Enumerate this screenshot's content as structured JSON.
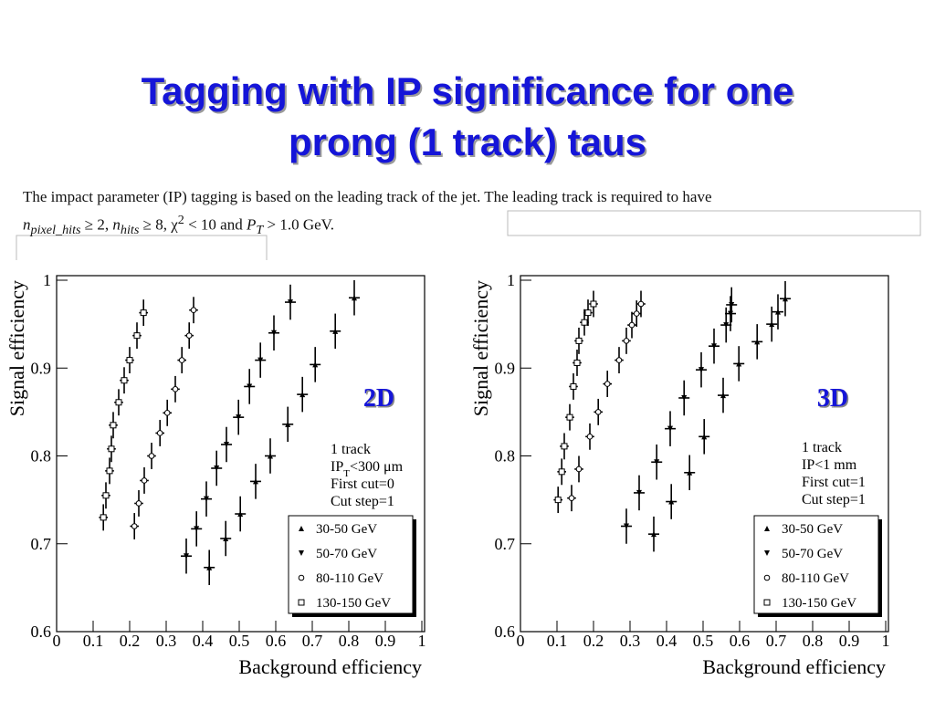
{
  "title": [
    "Tagging with IP significance for one",
    "prong (1 track) taus"
  ],
  "paragraph": {
    "line1": "The impact parameter (IP) tagging is based on the leading track of the jet.  The leading track is required to have",
    "line2": [
      "n",
      "pixel_hits",
      " ≥ 2, ",
      "n",
      "hits",
      " ≥ 8, χ",
      "2",
      " < 10 and ",
      "P",
      "T",
      " > 1.0 GeV."
    ]
  },
  "chart_data": [
    {
      "type": "scatter",
      "label": "2D",
      "x_label": "Background efficiency",
      "y_label": "Signal efficiency",
      "xlim": [
        0,
        1
      ],
      "ylim": [
        0.6,
        1
      ],
      "xticks": [
        0,
        0.1,
        0.2,
        0.3,
        0.4,
        0.5,
        0.6,
        0.7,
        0.8,
        0.9,
        1
      ],
      "yticks": [
        0.6,
        0.7,
        0.8,
        0.9,
        1
      ],
      "notes": [
        [
          "1 track"
        ],
        [
          "IP",
          "T",
          "<300 μm"
        ],
        [
          "First cut=0"
        ],
        [
          "Cut step=1"
        ]
      ],
      "series": [
        {
          "name": "30-50 GeV",
          "marker": "triangle-up",
          "color": "#000000",
          "xerr": 0.015,
          "yerr": 0.02,
          "x": [
            0.418,
            0.463,
            0.503,
            0.545,
            0.585,
            0.633,
            0.673,
            0.708,
            0.763,
            0.815
          ],
          "values": [
            0.673,
            0.706,
            0.734,
            0.771,
            0.8,
            0.836,
            0.87,
            0.904,
            0.942,
            0.98
          ]
        },
        {
          "name": "50-70 GeV",
          "marker": "triangle-down",
          "color": "#000000",
          "xerr": 0.015,
          "yerr": 0.02,
          "x": [
            0.355,
            0.383,
            0.41,
            0.438,
            0.465,
            0.498,
            0.528,
            0.558,
            0.595,
            0.64
          ],
          "values": [
            0.686,
            0.717,
            0.751,
            0.786,
            0.813,
            0.844,
            0.879,
            0.909,
            0.94,
            0.975
          ]
        },
        {
          "name": "80-110 GeV",
          "marker": "circle",
          "color": "#000000",
          "xerr": 0.012,
          "yerr": 0.015,
          "x": [
            0.213,
            0.225,
            0.24,
            0.26,
            0.283,
            0.303,
            0.325,
            0.343,
            0.363,
            0.375
          ],
          "values": [
            0.72,
            0.746,
            0.772,
            0.8,
            0.826,
            0.849,
            0.876,
            0.909,
            0.937,
            0.966
          ]
        },
        {
          "name": "130-150 GeV",
          "marker": "square",
          "color": "#000000",
          "xerr": 0.012,
          "yerr": 0.015,
          "x": [
            0.128,
            0.135,
            0.145,
            0.15,
            0.155,
            0.17,
            0.185,
            0.2,
            0.22,
            0.238
          ],
          "values": [
            0.73,
            0.755,
            0.783,
            0.808,
            0.835,
            0.861,
            0.886,
            0.909,
            0.937,
            0.963
          ]
        }
      ]
    },
    {
      "type": "scatter",
      "label": "3D",
      "x_label": "Background efficiency",
      "y_label": "Signal efficiency",
      "xlim": [
        0,
        1
      ],
      "ylim": [
        0.6,
        1
      ],
      "xticks": [
        0,
        0.1,
        0.2,
        0.3,
        0.4,
        0.5,
        0.6,
        0.7,
        0.8,
        0.9,
        1
      ],
      "yticks": [
        0.6,
        0.7,
        0.8,
        0.9,
        1
      ],
      "notes": [
        [
          "1 track"
        ],
        [
          "IP<1 mm"
        ],
        [
          "First cut=1"
        ],
        [
          "Cut step=1"
        ]
      ],
      "series": [
        {
          "name": "30-50 GeV",
          "marker": "triangle-up",
          "color": "#000000",
          "xerr": 0.015,
          "yerr": 0.02,
          "x": [
            0.365,
            0.413,
            0.463,
            0.503,
            0.555,
            0.598,
            0.648,
            0.688,
            0.705,
            0.725
          ],
          "values": [
            0.711,
            0.748,
            0.781,
            0.822,
            0.869,
            0.905,
            0.93,
            0.95,
            0.964,
            0.979
          ]
        },
        {
          "name": "50-70 GeV",
          "marker": "triangle-down",
          "color": "#000000",
          "xerr": 0.015,
          "yerr": 0.02,
          "x": [
            0.29,
            0.325,
            0.373,
            0.41,
            0.448,
            0.495,
            0.53,
            0.563,
            0.575,
            0.578
          ],
          "values": [
            0.72,
            0.758,
            0.793,
            0.831,
            0.866,
            0.898,
            0.925,
            0.949,
            0.962,
            0.972
          ]
        },
        {
          "name": "80-110 GeV",
          "marker": "circle",
          "color": "#000000",
          "xerr": 0.012,
          "yerr": 0.015,
          "x": [
            0.14,
            0.16,
            0.19,
            0.213,
            0.238,
            0.27,
            0.29,
            0.305,
            0.318,
            0.33
          ],
          "values": [
            0.752,
            0.785,
            0.822,
            0.85,
            0.882,
            0.909,
            0.931,
            0.949,
            0.962,
            0.973
          ]
        },
        {
          "name": "130-150 GeV",
          "marker": "square",
          "color": "#000000",
          "xerr": 0.012,
          "yerr": 0.015,
          "x": [
            0.103,
            0.113,
            0.12,
            0.135,
            0.145,
            0.155,
            0.16,
            0.175,
            0.185,
            0.2
          ],
          "values": [
            0.75,
            0.782,
            0.811,
            0.844,
            0.879,
            0.906,
            0.931,
            0.952,
            0.963,
            0.973
          ]
        }
      ]
    }
  ]
}
